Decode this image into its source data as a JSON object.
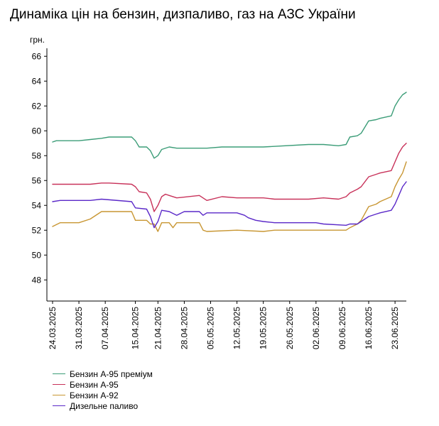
{
  "chart_data": {
    "type": "line",
    "title": "Динаміка цін на бензин, дизпаливо, газ на АЗС України",
    "ylabel": "грн.",
    "xlabel": "",
    "ylim": [
      46.3,
      66.3
    ],
    "yticks": [
      "48",
      "50",
      "52",
      "54",
      "56",
      "58",
      "60",
      "62",
      "64",
      "66"
    ],
    "x_start": "2025-03-24",
    "x_end": "2025-06-26",
    "xticks": [
      "24.03.2025",
      "31.03.2025",
      "07.04.2025",
      "15.04.2025",
      "21.04.2025",
      "28.04.2025",
      "05.05.2025",
      "12.05.2025",
      "19.05.2025",
      "26.05.2025",
      "02.06.2025",
      "09.06.2025",
      "16.06.2025",
      "23.06.2025"
    ],
    "grid": false,
    "legend": "bottom-left",
    "series": [
      {
        "name": "Бензин А-95 преміум",
        "color": "#3c9d78",
        "x": [
          "2025-03-24",
          "2025-03-25",
          "2025-03-31",
          "2025-04-03",
          "2025-04-06",
          "2025-04-08",
          "2025-04-14",
          "2025-04-15",
          "2025-04-16",
          "2025-04-18",
          "2025-04-19",
          "2025-04-20",
          "2025-04-21",
          "2025-04-22",
          "2025-04-24",
          "2025-04-26",
          "2025-05-04",
          "2025-05-08",
          "2025-05-12",
          "2025-05-19",
          "2025-05-31",
          "2025-06-04",
          "2025-06-08",
          "2025-06-10",
          "2025-06-11",
          "2025-06-13",
          "2025-06-14",
          "2025-06-16",
          "2025-06-18",
          "2025-06-19",
          "2025-06-22",
          "2025-06-23",
          "2025-06-24",
          "2025-06-25",
          "2025-06-26"
        ],
        "values": [
          59.1,
          59.2,
          59.2,
          59.3,
          59.4,
          59.5,
          59.5,
          59.2,
          58.7,
          58.7,
          58.4,
          57.8,
          58.0,
          58.5,
          58.7,
          58.6,
          58.6,
          58.7,
          58.7,
          58.7,
          58.9,
          58.9,
          58.8,
          58.9,
          59.5,
          59.6,
          59.8,
          60.8,
          60.9,
          61.0,
          61.2,
          62.0,
          62.5,
          62.9,
          63.1
        ]
      },
      {
        "name": "Бензин А-95",
        "color": "#c8325a",
        "x": [
          "2025-03-24",
          "2025-03-25",
          "2025-04-03",
          "2025-04-06",
          "2025-04-08",
          "2025-04-14",
          "2025-04-15",
          "2025-04-16",
          "2025-04-18",
          "2025-04-19",
          "2025-04-20",
          "2025-04-21",
          "2025-04-22",
          "2025-04-23",
          "2025-04-24",
          "2025-04-26",
          "2025-05-02",
          "2025-05-04",
          "2025-05-08",
          "2025-05-12",
          "2025-05-19",
          "2025-05-22",
          "2025-05-31",
          "2025-06-04",
          "2025-06-08",
          "2025-06-10",
          "2025-06-11",
          "2025-06-13",
          "2025-06-14",
          "2025-06-16",
          "2025-06-18",
          "2025-06-19",
          "2025-06-22",
          "2025-06-23",
          "2025-06-24",
          "2025-06-25",
          "2025-06-26"
        ],
        "values": [
          55.7,
          55.7,
          55.7,
          55.8,
          55.8,
          55.7,
          55.5,
          55.1,
          55.0,
          54.5,
          53.5,
          54.0,
          54.7,
          54.9,
          54.8,
          54.6,
          54.8,
          54.4,
          54.7,
          54.6,
          54.6,
          54.5,
          54.5,
          54.6,
          54.5,
          54.7,
          55.0,
          55.3,
          55.5,
          56.3,
          56.5,
          56.6,
          56.8,
          57.5,
          58.2,
          58.7,
          59.0
        ]
      },
      {
        "name": "Бензин А-92",
        "color": "#c89632",
        "x": [
          "2025-03-24",
          "2025-03-26",
          "2025-03-31",
          "2025-04-03",
          "2025-04-06",
          "2025-04-14",
          "2025-04-15",
          "2025-04-18",
          "2025-04-19",
          "2025-04-20",
          "2025-04-21",
          "2025-04-22",
          "2025-04-24",
          "2025-04-25",
          "2025-04-26",
          "2025-05-02",
          "2025-05-03",
          "2025-05-04",
          "2025-05-12",
          "2025-05-19",
          "2025-05-22",
          "2025-06-10",
          "2025-06-11",
          "2025-06-13",
          "2025-06-14",
          "2025-06-16",
          "2025-06-18",
          "2025-06-19",
          "2025-06-22",
          "2025-06-23",
          "2025-06-24",
          "2025-06-25",
          "2025-06-26"
        ],
        "values": [
          52.3,
          52.6,
          52.6,
          52.9,
          53.5,
          53.5,
          52.8,
          52.8,
          52.5,
          52.5,
          51.9,
          52.6,
          52.6,
          52.2,
          52.6,
          52.6,
          52.0,
          51.9,
          52.0,
          51.9,
          52.0,
          52.0,
          52.2,
          52.5,
          52.8,
          53.9,
          54.1,
          54.3,
          54.7,
          55.5,
          56.1,
          56.6,
          57.5
        ]
      },
      {
        "name": "Дизельне паливо",
        "color": "#5a28c8",
        "x": [
          "2025-03-24",
          "2025-03-26",
          "2025-04-03",
          "2025-04-06",
          "2025-04-14",
          "2025-04-15",
          "2025-04-18",
          "2025-04-19",
          "2025-04-20",
          "2025-04-21",
          "2025-04-22",
          "2025-04-24",
          "2025-04-26",
          "2025-04-28",
          "2025-05-02",
          "2025-05-03",
          "2025-05-04",
          "2025-05-12",
          "2025-05-14",
          "2025-05-15",
          "2025-05-17",
          "2025-05-19",
          "2025-05-22",
          "2025-06-02",
          "2025-06-04",
          "2025-06-10",
          "2025-06-11",
          "2025-06-13",
          "2025-06-14",
          "2025-06-16",
          "2025-06-18",
          "2025-06-19",
          "2025-06-22",
          "2025-06-23",
          "2025-06-24",
          "2025-06-25",
          "2025-06-26"
        ],
        "values": [
          54.3,
          54.4,
          54.4,
          54.5,
          54.3,
          53.8,
          53.7,
          53.1,
          52.2,
          52.7,
          53.6,
          53.5,
          53.2,
          53.5,
          53.5,
          53.2,
          53.4,
          53.4,
          53.2,
          53.0,
          52.8,
          52.7,
          52.6,
          52.6,
          52.5,
          52.4,
          52.5,
          52.5,
          52.7,
          53.1,
          53.3,
          53.4,
          53.6,
          54.1,
          54.8,
          55.5,
          55.9
        ]
      }
    ]
  }
}
